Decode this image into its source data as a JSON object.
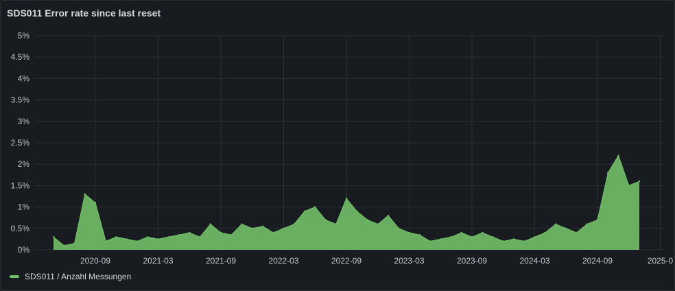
{
  "panel": {
    "title": "SDS011 Error rate since last reset"
  },
  "colors": {
    "series": "#73bf69",
    "grid": "#2c3036",
    "text": "#c7c8ca"
  },
  "chart_data": {
    "type": "area",
    "title": "SDS011 Error rate since last reset",
    "y_ticks": [
      "0%",
      "0.5%",
      "1%",
      "1.5%",
      "2%",
      "2.5%",
      "3%",
      "3.5%",
      "4%",
      "4.5%",
      "5%"
    ],
    "ylim": [
      0,
      5
    ],
    "x_ticks": [
      "2020-09",
      "2021-03",
      "2021-09",
      "2022-03",
      "2022-09",
      "2023-03",
      "2023-09",
      "2024-03",
      "2024-09",
      "2025-0"
    ],
    "xlim": [
      "2020-04",
      "2025-01"
    ],
    "grid": true,
    "legend": "bottom-left",
    "series": [
      {
        "name": "SDS011 / Anzahl Messungen",
        "x": [
          "2020-05",
          "2020-06",
          "2020-07",
          "2020-08",
          "2020-09",
          "2020-10",
          "2020-11",
          "2020-12",
          "2021-01",
          "2021-02",
          "2021-03",
          "2021-04",
          "2021-05",
          "2021-06",
          "2021-07",
          "2021-08",
          "2021-09",
          "2021-10",
          "2021-11",
          "2021-12",
          "2022-01",
          "2022-02",
          "2022-03",
          "2022-04",
          "2022-05",
          "2022-06",
          "2022-07",
          "2022-08",
          "2022-09",
          "2022-10",
          "2022-11",
          "2022-12",
          "2023-01",
          "2023-02",
          "2023-03",
          "2023-04",
          "2023-05",
          "2023-06",
          "2023-07",
          "2023-08",
          "2023-09",
          "2023-10",
          "2023-11",
          "2023-12",
          "2024-01",
          "2024-02",
          "2024-03",
          "2024-04",
          "2024-05",
          "2024-06",
          "2024-07",
          "2024-08",
          "2024-09",
          "2024-10",
          "2024-11",
          "2024-12",
          "2025-01"
        ],
        "values": [
          0.3,
          0.1,
          0.15,
          1.3,
          1.1,
          0.2,
          0.3,
          0.25,
          0.2,
          0.3,
          0.25,
          0.3,
          0.35,
          0.4,
          0.3,
          0.6,
          0.4,
          0.35,
          0.6,
          0.5,
          0.55,
          0.4,
          0.5,
          0.6,
          0.9,
          1.0,
          0.7,
          0.6,
          1.2,
          0.9,
          0.7,
          0.6,
          0.8,
          0.5,
          0.4,
          0.35,
          0.2,
          0.25,
          0.3,
          0.4,
          0.3,
          0.4,
          0.3,
          0.2,
          0.25,
          0.2,
          0.3,
          0.4,
          0.6,
          0.5,
          0.4,
          0.6,
          0.7,
          1.8,
          2.2,
          1.5,
          1.6
        ]
      }
    ]
  }
}
